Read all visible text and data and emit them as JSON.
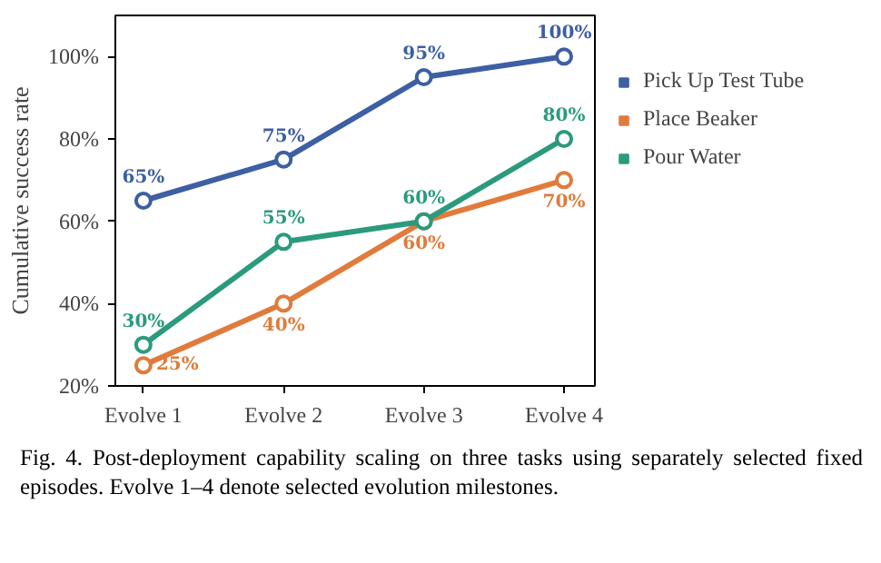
{
  "chart_data": {
    "type": "line",
    "ylabel": "Cumulative success rate",
    "categories": [
      "Evolve 1",
      "Evolve 2",
      "Evolve 3",
      "Evolve 4"
    ],
    "series": [
      {
        "name": "Pick Up Test Tube",
        "color": "#3d5fa3",
        "values": [
          65,
          75,
          95,
          100
        ],
        "value_labels": [
          "65%",
          "75%",
          "95%",
          "100%"
        ]
      },
      {
        "name": "Place Beaker",
        "color": "#e07b3c",
        "values": [
          25,
          40,
          60,
          70
        ],
        "value_labels": [
          "25%",
          "40%",
          "60%",
          "70%"
        ]
      },
      {
        "name": "Pour Water",
        "color": "#2b9a7d",
        "values": [
          30,
          55,
          60,
          80
        ],
        "value_labels": [
          "30%",
          "55%",
          "60%",
          "80%"
        ]
      }
    ],
    "ylim": [
      20,
      110
    ],
    "yticks": [
      {
        "value": 20,
        "label": "20%"
      },
      {
        "value": 40,
        "label": "40%"
      },
      {
        "value": 60,
        "label": "60%"
      },
      {
        "value": 80,
        "label": "80%"
      },
      {
        "value": 100,
        "label": "100%"
      }
    ],
    "marker": "circle",
    "line_style": "solid",
    "grid": false,
    "legend": "right",
    "annotations": [
      "Fig. 4.   Post-deployment capability scaling on three tasks using separately selected fixed episodes. Evolve 1–4 denote selected evolution milestones."
    ]
  }
}
